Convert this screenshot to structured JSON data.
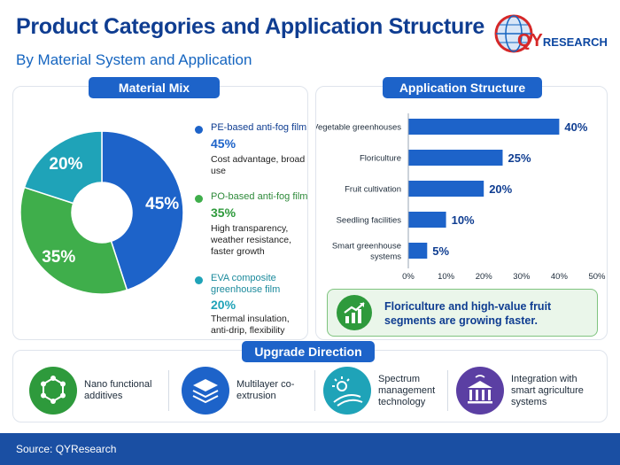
{
  "header": {
    "title": "Product Categories and Application Structure",
    "subtitle": "By Material System and Application"
  },
  "logo": {
    "brand_prefix": "QY",
    "brand_suffix": "RESEARCH"
  },
  "material_mix": {
    "tab_label": "Material Mix",
    "legend": [
      {
        "name": "PE-based anti-fog film",
        "pct": "45%",
        "desc": "Cost advantage, broad use",
        "color": "#1d63c9"
      },
      {
        "name": "PO-based anti-fog film",
        "pct": "35%",
        "desc": "High transparency, weather resistance, faster growth",
        "color": "#3fae4b"
      },
      {
        "name": "EVA composite greenhouse film",
        "pct": "20%",
        "desc": "Thermal insulation, anti-drip, flexibility",
        "color": "#1fa3b8"
      }
    ]
  },
  "application_structure": {
    "tab_label": "Application Structure",
    "callout": "Floriculture and high-value fruit segments are growing faster.",
    "callout_icon": "growth-chart-icon"
  },
  "upgrade_direction": {
    "tab_label": "Upgrade Direction",
    "items": [
      {
        "label": "Nano functional additives",
        "icon": "molecule-icon",
        "color": "#2e9a3c"
      },
      {
        "label": "Multilayer co-extrusion",
        "icon": "layers-icon",
        "color": "#1d63c9"
      },
      {
        "label": "Spectrum management technology",
        "icon": "spectrum-icon",
        "color": "#1fa3b8"
      },
      {
        "label": "Integration with smart agriculture systems",
        "icon": "smart-greenhouse-icon",
        "color": "#5b3fa3"
      }
    ]
  },
  "footer": {
    "source": "Source: QYResearch"
  },
  "chart_data": [
    {
      "type": "pie",
      "categories": [
        "PE-based anti-fog film",
        "PO-based anti-fog film",
        "EVA composite greenhouse film"
      ],
      "values": [
        45,
        35,
        20
      ],
      "labels": [
        "45%",
        "35%",
        "20%"
      ],
      "colors": [
        "#1d63c9",
        "#3fae4b",
        "#1fa3b8"
      ],
      "donut": true
    },
    {
      "type": "bar",
      "orientation": "horizontal",
      "categories": [
        "Vegetable greenhouses",
        "Floriculture",
        "Fruit cultivation",
        "Seedling facilities",
        "Smart greenhouse systems"
      ],
      "values": [
        40,
        25,
        20,
        10,
        5
      ],
      "labels": [
        "40%",
        "25%",
        "20%",
        "10%",
        "5%"
      ],
      "xlim": [
        0,
        50
      ],
      "xticks": [
        "0%",
        "10%",
        "20%",
        "30%",
        "40%",
        "50%"
      ],
      "color": "#1d63c9",
      "grid": false
    }
  ]
}
